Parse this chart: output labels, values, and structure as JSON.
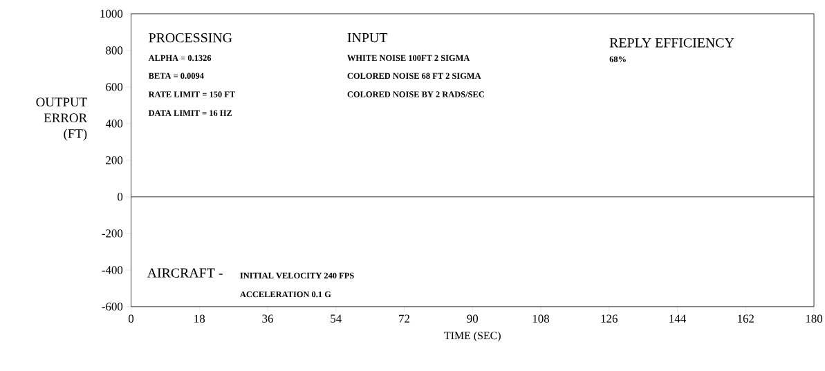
{
  "chart_data": {
    "type": "line",
    "xlabel": "TIME (SEC)",
    "ylabel": "OUTPUT ERROR (FT)",
    "xlim": [
      0,
      180
    ],
    "xticks": [
      0,
      18,
      36,
      54,
      72,
      90,
      108,
      126,
      144,
      162,
      180
    ],
    "ylim": [
      -600,
      1000
    ],
    "yticks": [
      -600,
      -400,
      -200,
      0,
      200,
      400,
      600,
      800,
      1000
    ],
    "grid": false,
    "ref_lines": [
      {
        "axis": "y",
        "value": 0,
        "color": "#000000"
      }
    ],
    "annotations": [
      "PROCESSING",
      "ALPHA = 0.1326",
      "BETA = 0.0094",
      "RATE LIMIT = 150 FT",
      "DATA LIMIT = 16 HZ",
      "INPUT",
      "WHITE NOISE 100FT 2 SIGMA",
      "COLORED NOISE 68 FT 2 SIGMA",
      "COLORED NOISE BY 2 RADS/SEC",
      "REPLY EFFICIENCY",
      "68%",
      "AIRCRAFT -",
      "INITIAL VELOCITY 240 FPS",
      "ACCELERATION 0.1 G"
    ]
  }
}
